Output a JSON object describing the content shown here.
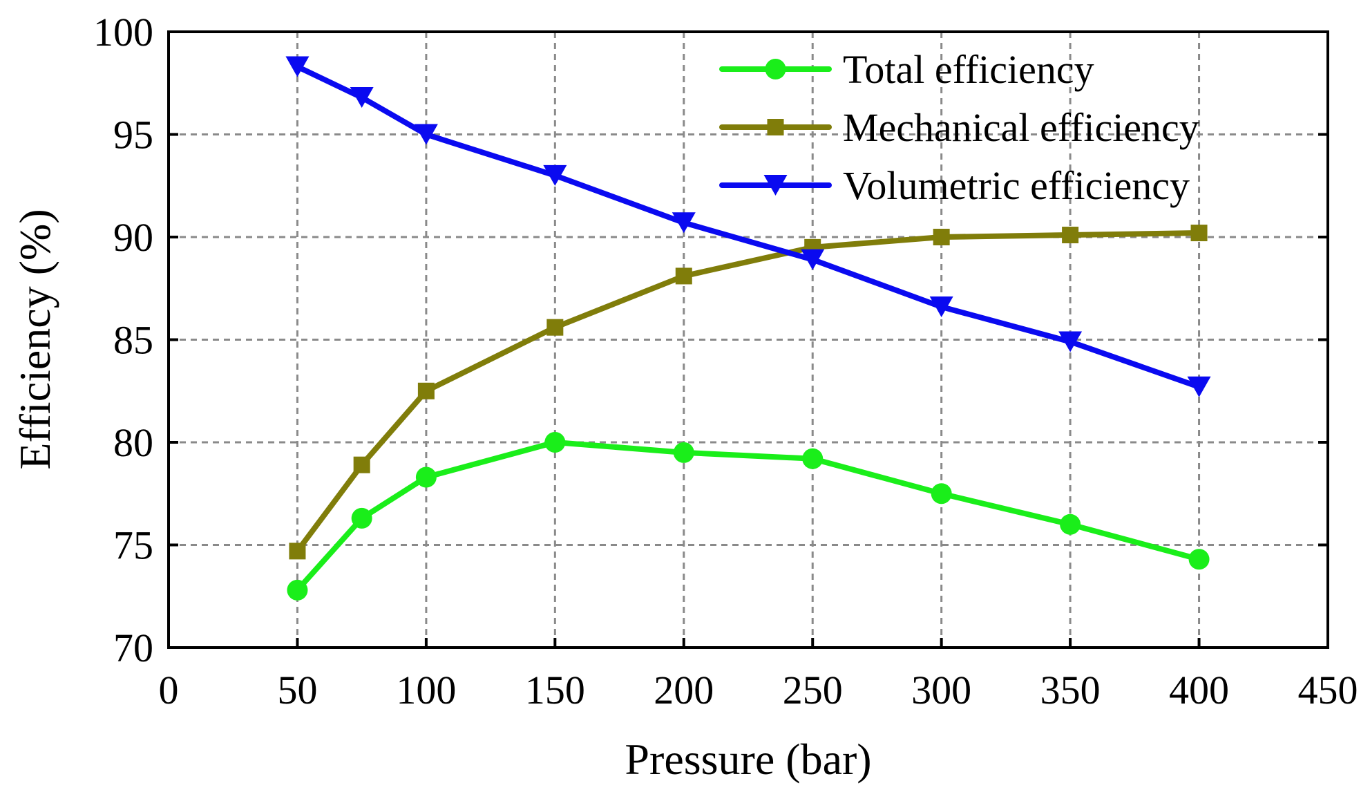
{
  "chart_data": {
    "type": "line",
    "title": "",
    "xlabel": "Pressure (bar)",
    "ylabel": "Efficiency (%)",
    "xlim": [
      0,
      450
    ],
    "ylim": [
      70,
      100
    ],
    "xticks": [
      0,
      50,
      100,
      150,
      200,
      250,
      300,
      350,
      400,
      450
    ],
    "yticks": [
      70,
      75,
      80,
      85,
      90,
      95,
      100
    ],
    "grid": true,
    "legend_position": "top-right",
    "series": [
      {
        "name": "Total efficiency",
        "color": "#1aee1a",
        "marker": "circle",
        "x": [
          50,
          75,
          100,
          150,
          200,
          250,
          300,
          350,
          400
        ],
        "values": [
          72.8,
          76.3,
          78.3,
          80.0,
          79.5,
          79.2,
          77.5,
          76.0,
          74.3
        ]
      },
      {
        "name": "Mechanical efficiency",
        "color": "#807d0a",
        "marker": "square",
        "x": [
          50,
          75,
          100,
          150,
          200,
          250,
          300,
          350,
          400
        ],
        "values": [
          74.7,
          78.9,
          82.5,
          85.6,
          88.1,
          89.5,
          90.0,
          90.1,
          90.2
        ]
      },
      {
        "name": "Volumetric efficiency",
        "color": "#0a0af0",
        "marker": "triangle-down",
        "x": [
          50,
          75,
          100,
          150,
          200,
          250,
          300,
          350,
          400
        ],
        "values": [
          98.3,
          96.8,
          95.0,
          93.0,
          90.7,
          88.9,
          86.6,
          84.9,
          82.7
        ]
      }
    ]
  }
}
